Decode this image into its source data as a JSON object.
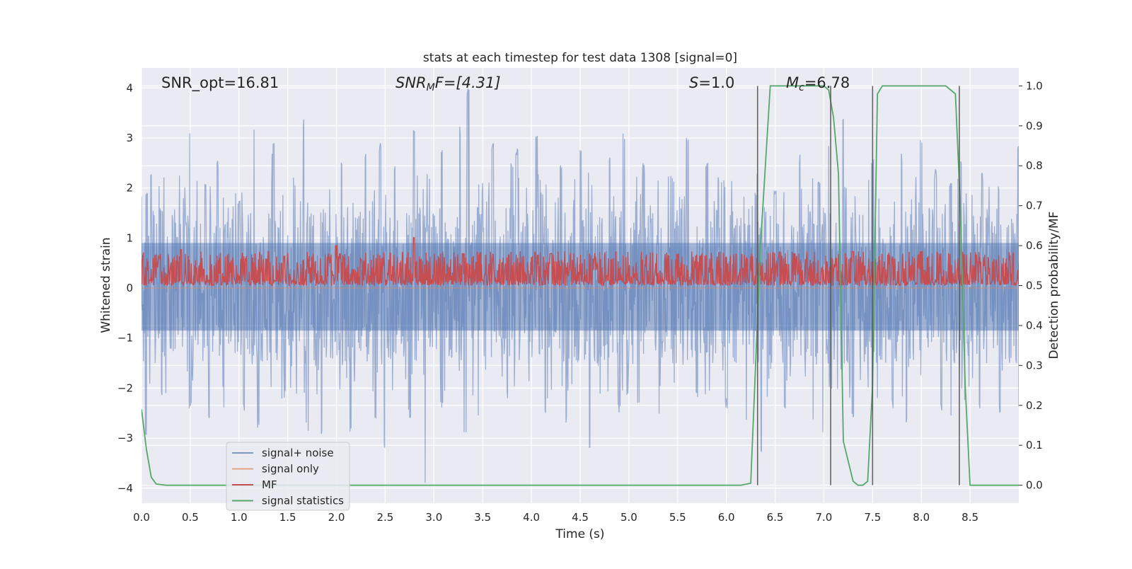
{
  "chart_data": {
    "type": "line",
    "title": "stats at each timestep for test data 1308 [signal=0]",
    "xlabel": "Time (s)",
    "ylabel": "Whitened strain",
    "y2label": "Detection probability/MF",
    "xlim": [
      0.0,
      9.0
    ],
    "ylim": [
      -4.3,
      4.4
    ],
    "y2lim": [
      -0.045,
      1.045
    ],
    "xticks": [
      0.0,
      0.5,
      1.0,
      1.5,
      2.0,
      2.5,
      3.0,
      3.5,
      4.0,
      4.5,
      5.0,
      5.5,
      6.0,
      6.5,
      7.0,
      7.5,
      8.0,
      8.5
    ],
    "xtick_labels": [
      "0.0",
      "0.5",
      "1.0",
      "1.5",
      "2.0",
      "2.5",
      "3.0",
      "3.5",
      "4.0",
      "4.5",
      "5.0",
      "5.5",
      "6.0",
      "6.5",
      "7.0",
      "7.5",
      "8.0",
      "8.5"
    ],
    "yticks": [
      -4,
      -3,
      -2,
      -1,
      0,
      1,
      2,
      3,
      4
    ],
    "ytick_labels": [
      "−4",
      "−3",
      "−2",
      "−1",
      "0",
      "1",
      "2",
      "3",
      "4"
    ],
    "y2ticks": [
      0.0,
      0.1,
      0.2,
      0.3,
      0.4,
      0.5,
      0.6,
      0.7,
      0.8,
      0.9,
      1.0
    ],
    "y2tick_labels": [
      "0.0",
      "0.1",
      "0.2",
      "0.3",
      "0.4",
      "0.5",
      "0.6",
      "0.7",
      "0.8",
      "0.9",
      "1.0"
    ],
    "grid": true,
    "legend_position": "lower-left",
    "annotations": {
      "snr_opt": "SNR_opt=16.81",
      "snr_mf_sym": "SNR",
      "snr_mf_sub": "M",
      "snr_mf_rest": "F=[4.31]",
      "s_sym": "S",
      "s_rest": "=1.0",
      "mc_sym": "M",
      "mc_sub": "c",
      "mc_rest": "=6.78"
    },
    "series": [
      {
        "name": "signal+ noise",
        "color": "#4c72b0",
        "alpha": 0.5,
        "kind": "noise",
        "axis": "left",
        "x_range": [
          0.0,
          9.0
        ],
        "sample_count": 1800,
        "upper_peaks": [
          [
            0.05,
            2.0
          ],
          [
            0.09,
            2.4
          ],
          [
            0.5,
            3.2
          ],
          [
            0.65,
            2.1
          ],
          [
            0.78,
            2.6
          ],
          [
            1.0,
            1.8
          ],
          [
            1.15,
            3.4
          ],
          [
            1.35,
            2.9
          ],
          [
            1.55,
            2.3
          ],
          [
            1.67,
            3.5
          ],
          [
            1.82,
            2.8
          ],
          [
            2.05,
            2.5
          ],
          [
            2.3,
            2.7
          ],
          [
            2.45,
            2.9
          ],
          [
            2.6,
            2.5
          ],
          [
            2.8,
            3.2
          ],
          [
            3.08,
            2.9
          ],
          [
            3.27,
            3.3
          ],
          [
            3.35,
            4.0
          ],
          [
            3.6,
            2.9
          ],
          [
            3.8,
            2.5
          ],
          [
            3.85,
            2.8
          ],
          [
            4.05,
            3.2
          ],
          [
            4.3,
            2.6
          ],
          [
            4.5,
            2.9
          ],
          [
            4.8,
            2.7
          ],
          [
            4.95,
            3.2
          ],
          [
            5.15,
            2.5
          ],
          [
            5.45,
            2.3
          ],
          [
            5.6,
            3.1
          ],
          [
            5.8,
            2.6
          ],
          [
            5.95,
            2.2
          ],
          [
            6.3,
            2.0
          ],
          [
            6.5,
            2.0
          ],
          [
            6.75,
            2.7
          ],
          [
            6.95,
            2.2
          ],
          [
            7.05,
            2.9
          ],
          [
            7.2,
            3.4
          ],
          [
            7.45,
            2.2
          ],
          [
            7.5,
            2.6
          ],
          [
            7.8,
            2.7
          ],
          [
            8.0,
            3.1
          ],
          [
            8.15,
            2.4
          ],
          [
            8.3,
            2.2
          ],
          [
            8.4,
            2.6
          ],
          [
            8.63,
            2.3
          ],
          [
            8.8,
            2.1
          ],
          [
            9.0,
            3.0
          ]
        ],
        "lower_peaks": [
          [
            0.05,
            -3.1
          ],
          [
            0.2,
            -2.2
          ],
          [
            0.5,
            -2.4
          ],
          [
            0.7,
            -2.7
          ],
          [
            0.85,
            -2.4
          ],
          [
            1.05,
            -2.5
          ],
          [
            1.2,
            -2.8
          ],
          [
            1.7,
            -2.9
          ],
          [
            1.85,
            -3.1
          ],
          [
            2.15,
            -2.9
          ],
          [
            2.4,
            -2.8
          ],
          [
            2.5,
            -3.2
          ],
          [
            2.75,
            -2.6
          ],
          [
            2.92,
            -3.9
          ],
          [
            3.08,
            -2.4
          ],
          [
            3.32,
            -3.1
          ],
          [
            3.45,
            -2.6
          ],
          [
            3.75,
            -2.2
          ],
          [
            4.15,
            -2.5
          ],
          [
            4.35,
            -2.7
          ],
          [
            4.6,
            -3.2
          ],
          [
            4.9,
            -2.5
          ],
          [
            5.1,
            -2.4
          ],
          [
            5.3,
            -2.6
          ],
          [
            5.7,
            -2.2
          ],
          [
            6.0,
            -2.4
          ],
          [
            6.2,
            -2.8
          ],
          [
            6.35,
            -3.3
          ],
          [
            6.6,
            -2.4
          ],
          [
            6.9,
            -2.7
          ],
          [
            7.0,
            -3.0
          ],
          [
            7.3,
            -2.6
          ],
          [
            7.5,
            -2.3
          ],
          [
            7.7,
            -2.4
          ],
          [
            7.85,
            -2.7
          ],
          [
            8.2,
            -2.5
          ],
          [
            8.3,
            -2.6
          ],
          [
            8.45,
            -2.3
          ],
          [
            8.6,
            -2.4
          ],
          [
            8.8,
            -2.5
          ],
          [
            9.0,
            -2.4
          ]
        ],
        "band": [
          -1.5,
          1.6
        ],
        "bulk": [
          -0.85,
          0.9
        ]
      },
      {
        "name": "signal only",
        "color": "#dd8452",
        "alpha": 0.5,
        "kind": "flat",
        "axis": "left",
        "value": 0.0
      },
      {
        "name": "MF",
        "color": "#c44e52",
        "alpha": 1.0,
        "kind": "noise",
        "axis": "right",
        "x_range": [
          0.0,
          9.0
        ],
        "sample_count": 1800,
        "base": 0.52,
        "upper_peaks": [
          [
            2.0,
            0.6
          ],
          [
            2.8,
            0.62
          ],
          [
            0.4,
            0.59
          ],
          [
            1.3,
            0.585
          ],
          [
            3.3,
            0.58
          ],
          [
            4.2,
            0.58
          ],
          [
            5.5,
            0.58
          ],
          [
            6.7,
            0.58
          ],
          [
            7.3,
            0.585
          ],
          [
            8.0,
            0.585
          ]
        ],
        "upper_band": [
          0.52,
          0.585
        ],
        "lower_band": [
          0.5,
          0.515
        ]
      },
      {
        "name": "signal statistics",
        "color": "#55a868",
        "alpha": 1.0,
        "kind": "line",
        "axis": "right",
        "x": [
          0.0,
          0.05,
          0.1,
          0.15,
          0.25,
          0.5,
          1.0,
          2.0,
          3.0,
          4.0,
          5.0,
          6.0,
          6.15,
          6.25,
          6.35,
          6.45,
          6.6,
          6.8,
          7.0,
          7.05,
          7.1,
          7.15,
          7.2,
          7.3,
          7.35,
          7.4,
          7.45,
          7.5,
          7.55,
          7.6,
          7.7,
          8.0,
          8.25,
          8.3,
          8.35,
          8.4,
          8.45,
          8.5,
          8.6,
          8.8,
          9.0
        ],
        "y": [
          0.19,
          0.09,
          0.02,
          0.003,
          0.0,
          0.0,
          0.0,
          0.0,
          0.0,
          0.0,
          0.0,
          0.0,
          0.0,
          0.005,
          0.6,
          1.0,
          1.0,
          1.0,
          1.0,
          0.99,
          0.92,
          0.78,
          0.11,
          0.01,
          0.0,
          0.0,
          0.01,
          0.25,
          0.98,
          1.0,
          1.0,
          1.0,
          1.0,
          0.99,
          0.98,
          0.7,
          0.25,
          0.0,
          0.0,
          0.0,
          0.0
        ]
      },
      {
        "name": "",
        "color": "#555555",
        "alpha": 0.9,
        "kind": "vlines",
        "axis": "right",
        "x": [
          6.32,
          7.07,
          7.5,
          8.39
        ],
        "y_range": [
          0.0,
          1.0
        ]
      }
    ]
  }
}
